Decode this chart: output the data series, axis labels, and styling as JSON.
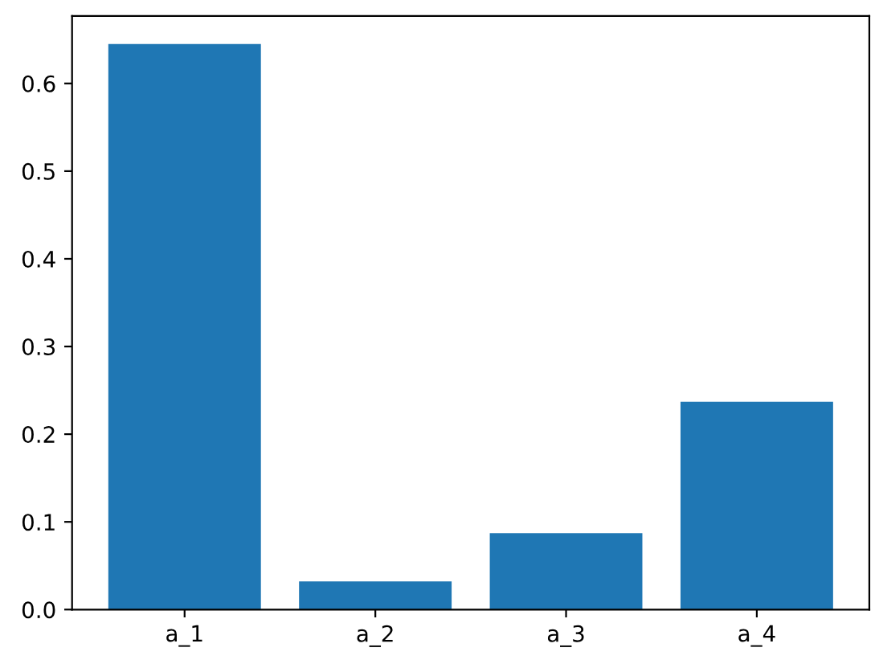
{
  "chart_data": {
    "type": "bar",
    "categories": [
      "a_1",
      "a_2",
      "a_3",
      "a_4"
    ],
    "values": [
      0.645,
      0.032,
      0.087,
      0.237
    ],
    "color": "#1f77b4",
    "ylim": [
      0,
      0.677
    ],
    "yticks": [
      {
        "value": 0,
        "label": "0.0"
      },
      0.1,
      0.2,
      0.3,
      0.4,
      0.5,
      0.6
    ]
  }
}
